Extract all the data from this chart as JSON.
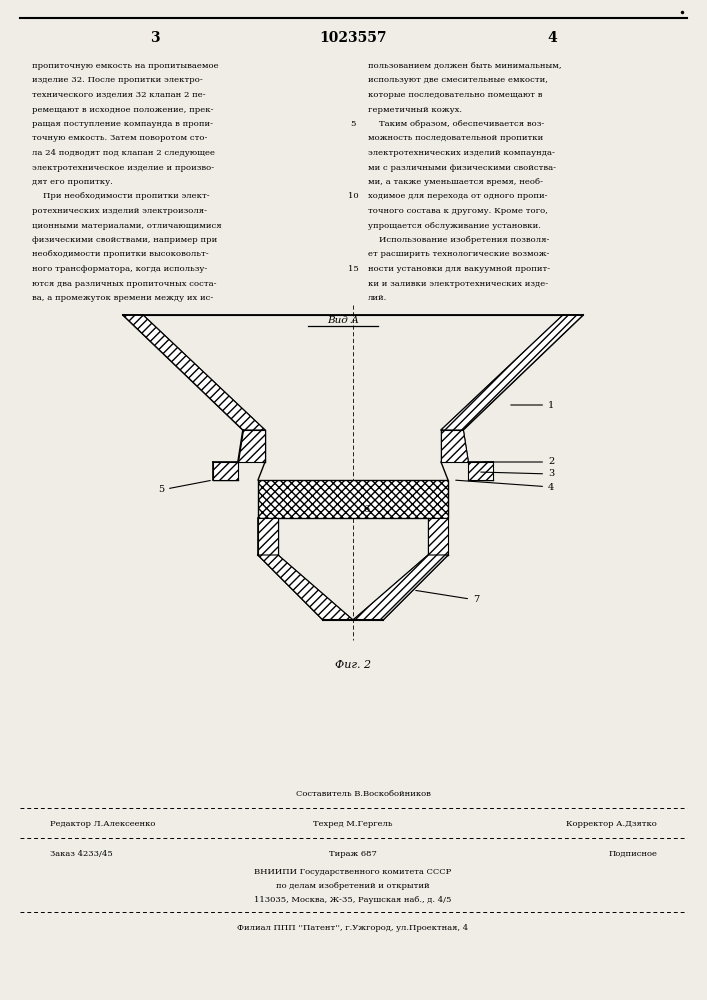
{
  "page_width": 7.07,
  "page_height": 10.0,
  "background_color": "#f0ede6",
  "top_header": {
    "left_num": "3",
    "center_num": "1023557",
    "right_num": "4"
  },
  "left_column_text": [
    "пропиточную емкость на пропитываемое",
    "изделие 32. После пропитки электро-",
    "технического изделия 32 клапан 2 пе-",
    "ремещают в исходное положение, прек-",
    "ращая поступление компаунда в пропи-",
    "точную емкость. Затем поворотом сто-",
    "ла 24 подводят под клапан 2 следующее",
    "электротехническое изделие и произво-",
    "дят его пропитку.",
    "    При необходимости пропитки элект-",
    "ротехнических изделий электроизоля-",
    "ционными материалами, отличающимися",
    "физическими свойствами, например при",
    "необходимости пропитки высоковольт-",
    "ного трансформатора, когда использу-",
    "ются два различных пропиточных соста-",
    "ва, а промежуток времени между их ис-"
  ],
  "right_column_text": [
    "пользованием должен быть минимальным,",
    "используют две смесительные емкости,",
    "которые последовательно помещают в",
    "герметичный кожух.",
    "    Таким образом, обеспечивается воз-",
    "можность последовательной пропитки",
    "электротехнических изделий компаунда-",
    "ми с различными физическими свойства-",
    "ми, а также уменьшается время, необ-",
    "ходимое для перехода от одного пропи-",
    "точного состава к другому. Кроме того,",
    "упрощается обслуживание установки.",
    "    Использование изобретения позволя-",
    "ет расширить технологические возмож-",
    "ности установки для вакуумной пропит-",
    "ки и заливки электротехнических изде-",
    "лий."
  ],
  "line_numbers_rows": [
    5,
    10,
    15
  ],
  "view_label": "Вид А",
  "fig_label": "Фиг. 2",
  "footer": {
    "compiler_label": "Составитель В.Воскобойников",
    "editor_label": "Редактор Л.Алексеенко",
    "tech_label": "Техред М.Гергель",
    "corrector_label": "Корректор А.Дзятко",
    "order_label": "Заказ 4233/45",
    "circulation_label": "Тираж 687",
    "subscription_label": "Подписное",
    "org_line1": "ВНИИПИ Государственного комитета СССР",
    "org_line2": "по делам изобретений и открытий",
    "org_line3": "113035, Москва, Ж-35, Раушская наб., д. 4/5",
    "branch_line": "Филиал ППП ''Патент'', г.Ужгород, ул.Проектная, 4"
  }
}
